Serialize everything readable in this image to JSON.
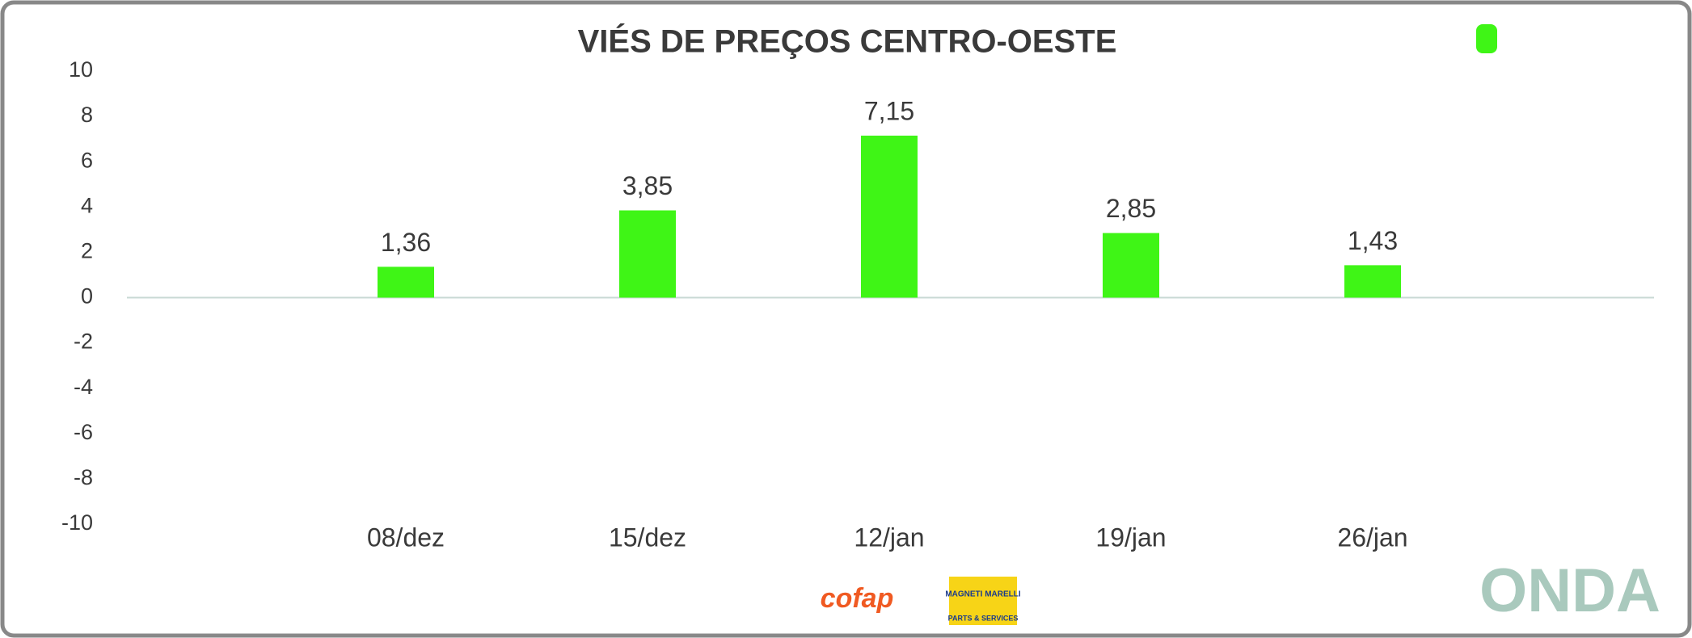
{
  "chart_data": {
    "type": "bar",
    "title": "VIÉS DE PREÇOS CENTRO-OESTE",
    "categories": [
      "08/dez",
      "15/dez",
      "12/jan",
      "19/jan",
      "26/jan"
    ],
    "values": [
      1.36,
      3.85,
      7.15,
      2.85,
      1.43
    ],
    "value_labels": [
      "1,36",
      "3,85",
      "7,15",
      "2,85",
      "1,43"
    ],
    "color": "#3ff516",
    "ylim": [
      -10,
      10
    ],
    "yticks": [
      -10,
      -8,
      -6,
      -4,
      -2,
      0,
      2,
      4,
      6,
      8,
      10
    ]
  },
  "branding": {
    "onda": "ONDA",
    "cofap": "cofap",
    "magneti": "MAGNETI MARELLI",
    "magneti_sub": "PARTS & SERVICES"
  }
}
